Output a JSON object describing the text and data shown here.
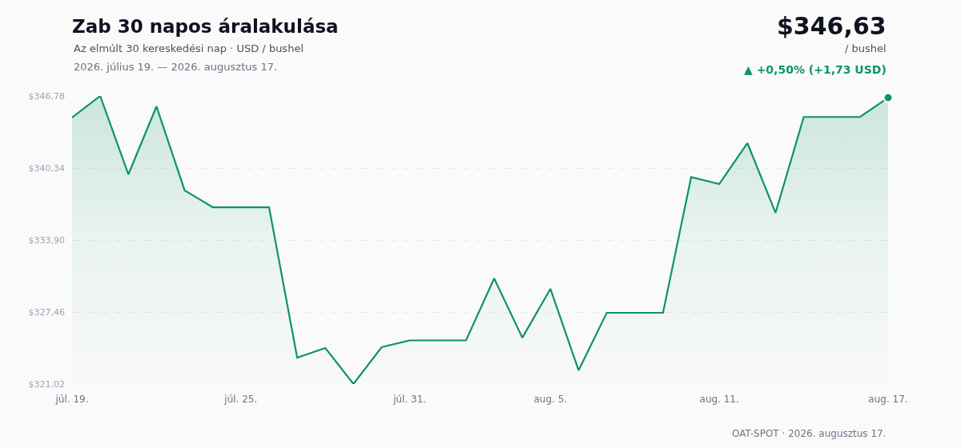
{
  "chart_data": {
    "type": "area",
    "title": "Zab 30 napos áralakulása",
    "subtitle": "Az elmúlt 30 kereskedési nap · USD / bushel",
    "annotations": [
      "2026. július 19. — 2026. augusztus 17.",
      "$346,63",
      "/ bushel",
      "▲ +0,50% (+1,73 USD)",
      "OAT-SPOT · 2026. augusztus 17."
    ],
    "x": [
      "2026-07-19",
      "2026-07-20",
      "2026-07-21",
      "2026-07-22",
      "2026-07-23",
      "2026-07-24",
      "2026-07-25",
      "2026-07-26",
      "2026-07-27",
      "2026-07-28",
      "2026-07-29",
      "2026-07-30",
      "2026-07-31",
      "2026-08-01",
      "2026-08-02",
      "2026-08-03",
      "2026-08-04",
      "2026-08-05",
      "2026-08-06",
      "2026-08-07",
      "2026-08-08",
      "2026-08-09",
      "2026-08-10",
      "2026-08-11",
      "2026-08-12",
      "2026-08-13",
      "2026-08-14",
      "2026-08-15",
      "2026-08-16",
      "2026-08-17"
    ],
    "series": [
      {
        "color": "#0e9467",
        "values": [
          344.85,
          346.78,
          339.77,
          345.85,
          338.34,
          336.83,
          336.83,
          336.83,
          323.38,
          324.24,
          321.02,
          324.31,
          324.92,
          324.92,
          324.92,
          330.46,
          325.16,
          329.53,
          322.24,
          327.39,
          327.39,
          327.39,
          339.52,
          338.91,
          342.56,
          336.33,
          344.9,
          344.9,
          344.9,
          346.63
        ]
      },
      {
        "type": "scatter",
        "color": "#0e9467",
        "marker": "circle",
        "x": [
          "2026-08-17"
        ],
        "values": [
          346.63
        ]
      }
    ],
    "xlim": [
      "2026-07-19",
      "2026-08-17"
    ],
    "xticks": [
      {
        "value": "2026-07-19",
        "label": "júl. 19."
      },
      {
        "value": "2026-07-25",
        "label": "júl. 25."
      },
      {
        "value": "2026-07-31",
        "label": "júl. 31."
      },
      {
        "value": "2026-08-05",
        "label": "aug. 5."
      },
      {
        "value": "2026-08-11",
        "label": "aug. 11."
      },
      {
        "value": "2026-08-17",
        "label": "aug. 17."
      }
    ],
    "ylim": [
      321.02,
      346.78
    ],
    "yticks": [
      {
        "value": 321.02,
        "label": "$321,02"
      },
      {
        "value": 327.46,
        "label": "$327,46"
      },
      {
        "value": 333.9,
        "label": "$333,90"
      },
      {
        "value": 340.34,
        "label": "$340,34"
      },
      {
        "value": 346.78,
        "label": "$346,78"
      }
    ],
    "grid": "y",
    "marker": "none",
    "line_style": "solid"
  }
}
